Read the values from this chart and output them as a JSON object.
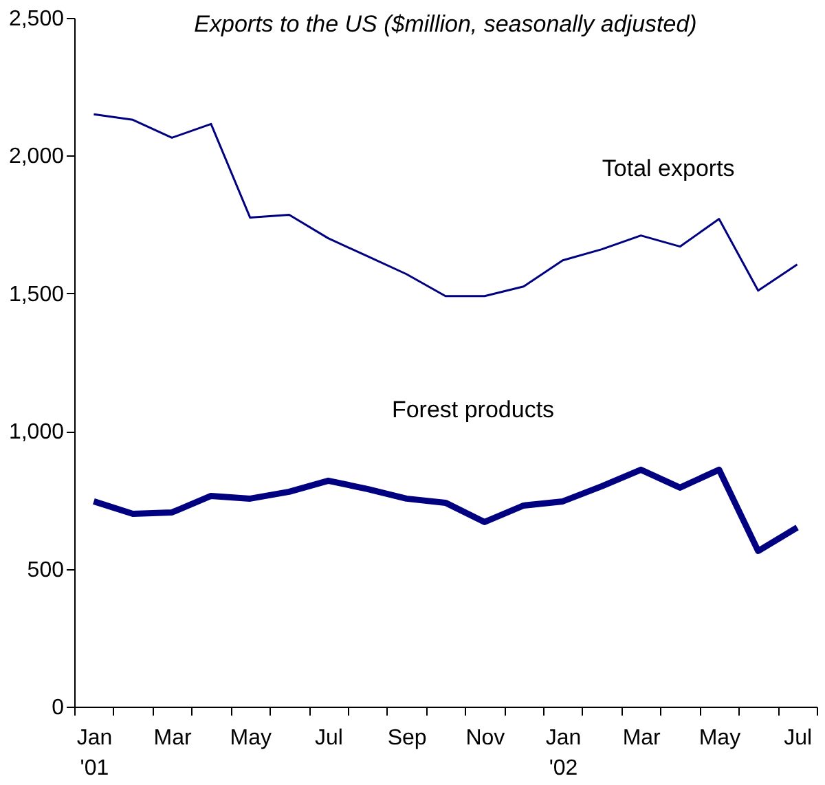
{
  "chart_data": {
    "type": "line",
    "title": "Exports to the US ($million, seasonally adjusted)",
    "categories": [
      "Jan\n'01",
      null,
      "Mar",
      null,
      "May",
      null,
      "Jul",
      null,
      "Sep",
      null,
      "Nov",
      null,
      "Jan\n'02",
      null,
      "Mar",
      null,
      "May",
      null,
      "Jul"
    ],
    "series": [
      {
        "name": "Total exports",
        "color": "#000080",
        "values": [
          2150,
          2130,
          2065,
          2115,
          1775,
          1785,
          1700,
          1635,
          1570,
          1490,
          1490,
          1525,
          1620,
          1660,
          1710,
          1670,
          1770,
          1510,
          1605
        ]
      },
      {
        "name": "Forest products",
        "color": "#000080",
        "values": [
          745,
          700,
          705,
          765,
          755,
          780,
          820,
          790,
          755,
          740,
          670,
          730,
          745,
          800,
          860,
          795,
          860,
          565,
          650
        ]
      }
    ],
    "ylim": [
      0,
      2500
    ],
    "yticks": [
      0,
      500,
      {
        "value": 1000,
        "label": "1,000"
      },
      {
        "value": 1500,
        "label": "1,500"
      },
      {
        "value": 2000,
        "label": "2,000"
      },
      {
        "value": 2500,
        "label": "2,500"
      }
    ],
    "grid": false,
    "legend": false,
    "marker": "none",
    "line_style": "solid"
  }
}
